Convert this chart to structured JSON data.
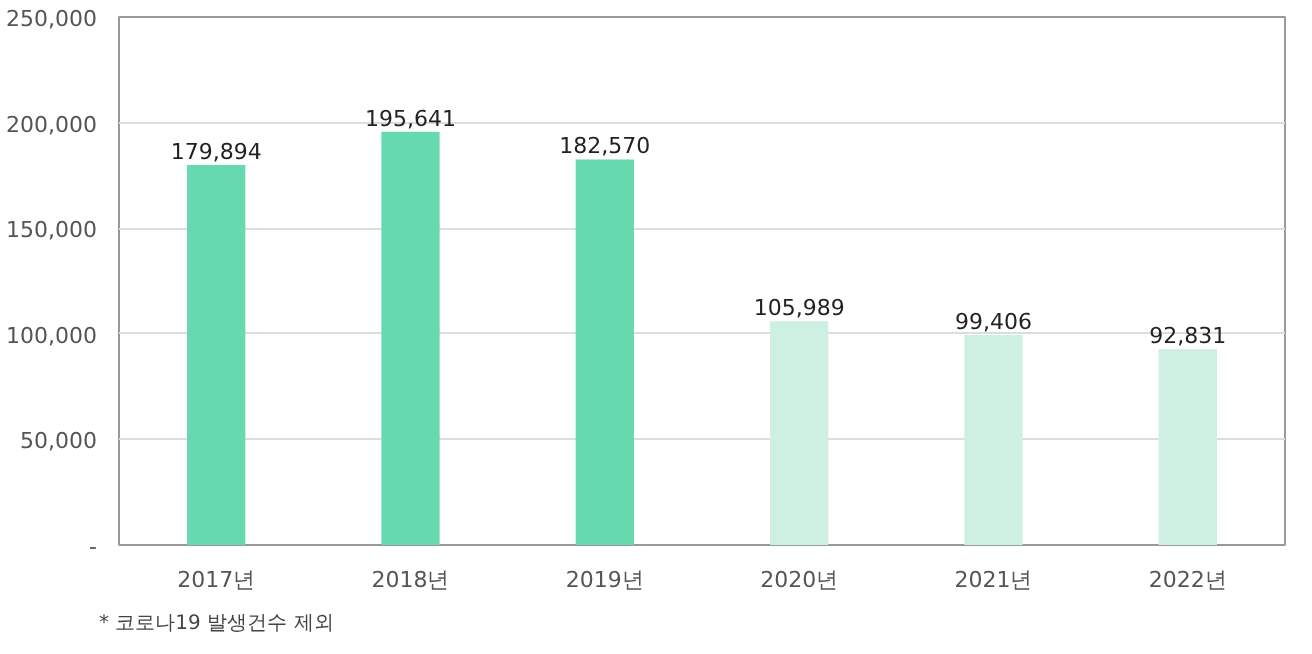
{
  "chart_data": {
    "type": "bar",
    "categories": [
      "2017년",
      "2018년",
      "2019년",
      "2020년",
      "2021년",
      "2022년"
    ],
    "values": [
      179894,
      195641,
      182570,
      105989,
      99406,
      92831
    ],
    "value_labels": [
      "179,894",
      "195,641",
      "182,570",
      "105,989",
      "99,406",
      "92,831"
    ],
    "colors": [
      "#66d9ae",
      "#66d9ae",
      "#66d9ae",
      "#cdf0e2",
      "#cdf0e2",
      "#cdf0e2"
    ],
    "ylim": [
      0,
      250000
    ],
    "yticks": [
      {
        "value": 0,
        "label": "-"
      },
      {
        "value": 50000,
        "label": "50,000"
      },
      {
        "value": 100000,
        "label": "100,000"
      },
      {
        "value": 150000,
        "label": "150,000"
      },
      {
        "value": 200000,
        "label": "200,000"
      },
      {
        "value": 250000,
        "label": "250,000"
      }
    ],
    "grid": "y",
    "annotations": [
      "* 코로나19 발생건수 제외"
    ]
  }
}
